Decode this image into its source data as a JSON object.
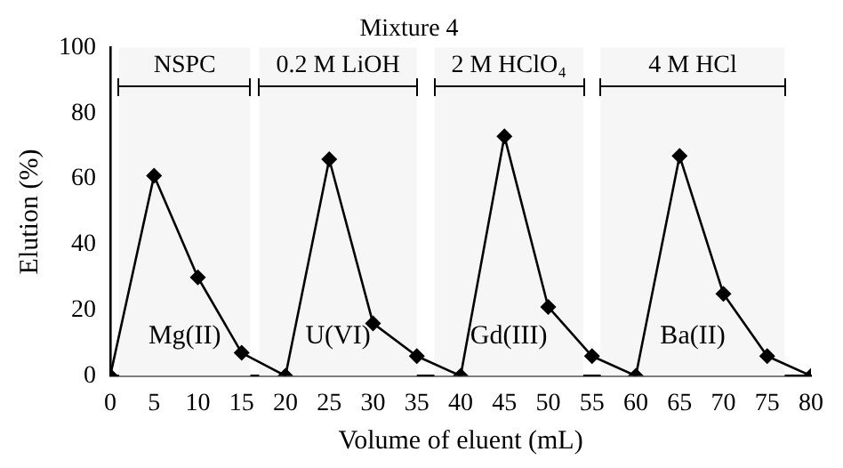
{
  "chart_data": {
    "type": "line",
    "title": "Mixture 4",
    "xlabel": "Volume of eluent (mL)",
    "ylabel": "Elution (%)",
    "x": [
      0,
      5,
      10,
      15,
      20,
      25,
      30,
      35,
      40,
      45,
      50,
      55,
      60,
      65,
      70,
      75,
      80
    ],
    "series": [
      {
        "color": "#000000",
        "values": [
          0,
          61,
          30,
          7,
          0,
          66,
          16,
          6,
          0,
          73,
          21,
          6,
          0,
          67,
          25,
          6,
          0
        ]
      }
    ],
    "xlim": [
      0,
      80
    ],
    "xticks": [
      0,
      5,
      10,
      15,
      20,
      25,
      30,
      35,
      40,
      45,
      50,
      55,
      60,
      65,
      70,
      75,
      80
    ],
    "ylim": [
      0,
      100
    ],
    "yticks": [
      0,
      20,
      40,
      60,
      80,
      100
    ],
    "grid": false,
    "legend": false,
    "marker": "diamond",
    "line_style": "solid",
    "bands": [
      {
        "axis": "x",
        "from": 1,
        "to": 16,
        "label": "NSPC",
        "color": "#f6f6f6"
      },
      {
        "axis": "x",
        "from": 17,
        "to": 35,
        "label": "0.2 M LiOH",
        "color": "#f6f6f6"
      },
      {
        "axis": "x",
        "from": 37,
        "to": 54,
        "label": "2 M HClO₄",
        "color": "#f6f6f6"
      },
      {
        "axis": "x",
        "from": 56,
        "to": 77,
        "label": "4 M HCl",
        "color": "#f6f6f6"
      }
    ],
    "annotations": [
      "Mg(II)",
      "U(VI)",
      "Gd(III)",
      "Ba(II)"
    ]
  }
}
